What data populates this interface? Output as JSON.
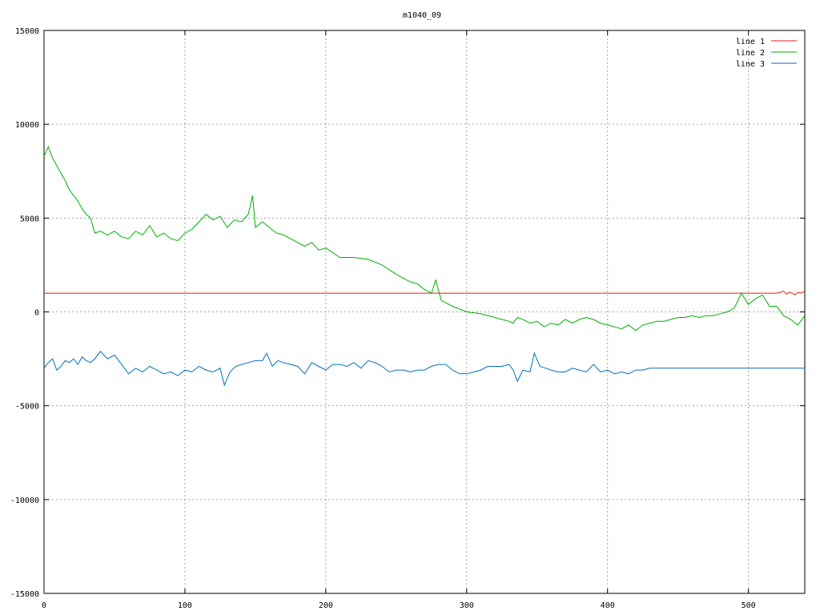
{
  "chart_data": {
    "type": "line",
    "title": "m1040_09",
    "xlabel": "",
    "ylabel": "",
    "xlim": [
      0,
      540
    ],
    "ylim": [
      -15000,
      15000
    ],
    "xticks": [
      0,
      100,
      200,
      300,
      400,
      500
    ],
    "xtick_labels": [
      "0",
      "100",
      "200",
      "300",
      "400",
      "500"
    ],
    "yticks": [
      -15000,
      -10000,
      -5000,
      0,
      5000,
      10000,
      15000
    ],
    "ytick_labels": [
      "-15000",
      "-10000",
      "-5000",
      "0",
      "5000",
      "10000",
      "15000"
    ],
    "grid": true,
    "legend_position": "top-right",
    "series": [
      {
        "name": "line 1",
        "color": "#e51e10",
        "x": [
          0,
          100,
          200,
          300,
          400,
          520,
          523,
          525,
          527,
          529,
          531,
          533,
          535,
          537,
          540
        ],
        "y": [
          1000,
          1000,
          1000,
          1000,
          1000,
          1000,
          1050,
          1100,
          950,
          1050,
          1000,
          900,
          1050,
          1000,
          1100
        ]
      },
      {
        "name": "line 2",
        "color": "#00b000",
        "x": [
          0,
          3,
          6,
          9,
          12,
          15,
          18,
          21,
          24,
          27,
          30,
          33,
          36,
          40,
          45,
          50,
          55,
          60,
          65,
          70,
          75,
          80,
          85,
          90,
          95,
          100,
          105,
          110,
          115,
          120,
          125,
          130,
          135,
          140,
          145,
          148,
          150,
          155,
          160,
          165,
          170,
          175,
          180,
          185,
          190,
          195,
          200,
          210,
          220,
          230,
          240,
          250,
          255,
          260,
          265,
          270,
          275,
          278,
          282,
          290,
          300,
          310,
          320,
          325,
          330,
          333,
          336,
          340,
          345,
          350,
          355,
          360,
          365,
          370,
          375,
          380,
          385,
          390,
          395,
          400,
          405,
          410,
          415,
          420,
          425,
          430,
          435,
          440,
          445,
          450,
          455,
          460,
          465,
          470,
          475,
          480,
          485,
          490,
          495,
          500,
          505,
          510,
          515,
          520,
          525,
          530,
          535,
          538,
          540
        ],
        "y": [
          8300,
          8800,
          8200,
          7800,
          7400,
          7000,
          6500,
          6200,
          5900,
          5500,
          5200,
          5000,
          4200,
          4300,
          4100,
          4300,
          4000,
          3900,
          4300,
          4100,
          4600,
          4000,
          4200,
          3900,
          3800,
          4200,
          4400,
          4800,
          5200,
          4900,
          5100,
          4500,
          4900,
          4800,
          5200,
          6200,
          4500,
          4800,
          4500,
          4200,
          4100,
          3900,
          3700,
          3500,
          3700,
          3300,
          3400,
          2900,
          2900,
          2800,
          2500,
          2000,
          1800,
          1600,
          1500,
          1200,
          1000,
          1700,
          600,
          300,
          0,
          -100,
          -300,
          -400,
          -500,
          -600,
          -300,
          -400,
          -600,
          -500,
          -800,
          -600,
          -700,
          -400,
          -600,
          -400,
          -300,
          -400,
          -600,
          -700,
          -800,
          -900,
          -700,
          -1000,
          -700,
          -600,
          -500,
          -500,
          -400,
          -300,
          -300,
          -200,
          -300,
          -200,
          -200,
          -100,
          0,
          200,
          1000,
          400,
          700,
          900,
          300,
          300,
          -200,
          -400,
          -700,
          -400,
          -200
        ]
      },
      {
        "name": "line 3",
        "color": "#0072bd",
        "x": [
          0,
          3,
          6,
          9,
          12,
          15,
          18,
          21,
          24,
          27,
          30,
          33,
          36,
          40,
          45,
          50,
          55,
          60,
          65,
          70,
          75,
          80,
          85,
          90,
          95,
          100,
          105,
          110,
          115,
          120,
          125,
          128,
          132,
          136,
          140,
          145,
          150,
          155,
          158,
          162,
          166,
          170,
          175,
          180,
          185,
          190,
          195,
          200,
          205,
          210,
          215,
          220,
          225,
          230,
          235,
          240,
          245,
          250,
          255,
          260,
          265,
          270,
          275,
          280,
          285,
          290,
          295,
          300,
          305,
          310,
          315,
          320,
          325,
          330,
          333,
          336,
          340,
          345,
          348,
          352,
          356,
          360,
          365,
          370,
          375,
          380,
          385,
          390,
          395,
          400,
          405,
          410,
          415,
          420,
          425,
          430,
          540
        ],
        "y": [
          -3000,
          -2700,
          -2500,
          -3100,
          -2900,
          -2600,
          -2700,
          -2500,
          -2800,
          -2400,
          -2600,
          -2700,
          -2500,
          -2100,
          -2500,
          -2300,
          -2800,
          -3300,
          -3000,
          -3200,
          -2900,
          -3100,
          -3300,
          -3200,
          -3400,
          -3100,
          -3200,
          -2900,
          -3100,
          -3200,
          -3000,
          -3900,
          -3200,
          -2900,
          -2800,
          -2700,
          -2600,
          -2600,
          -2200,
          -2900,
          -2600,
          -2700,
          -2800,
          -2900,
          -3300,
          -2700,
          -2900,
          -3100,
          -2800,
          -2800,
          -2900,
          -2700,
          -3000,
          -2600,
          -2700,
          -2900,
          -3200,
          -3100,
          -3100,
          -3200,
          -3100,
          -3100,
          -2900,
          -2800,
          -2800,
          -3100,
          -3300,
          -3300,
          -3200,
          -3100,
          -2900,
          -2900,
          -2900,
          -2800,
          -3100,
          -3700,
          -3100,
          -3200,
          -2200,
          -2900,
          -3000,
          -3100,
          -3200,
          -3200,
          -3000,
          -3100,
          -3200,
          -2800,
          -3200,
          -3100,
          -3300,
          -3200,
          -3300,
          -3100,
          -3100,
          -3000,
          -3000
        ]
      }
    ]
  }
}
